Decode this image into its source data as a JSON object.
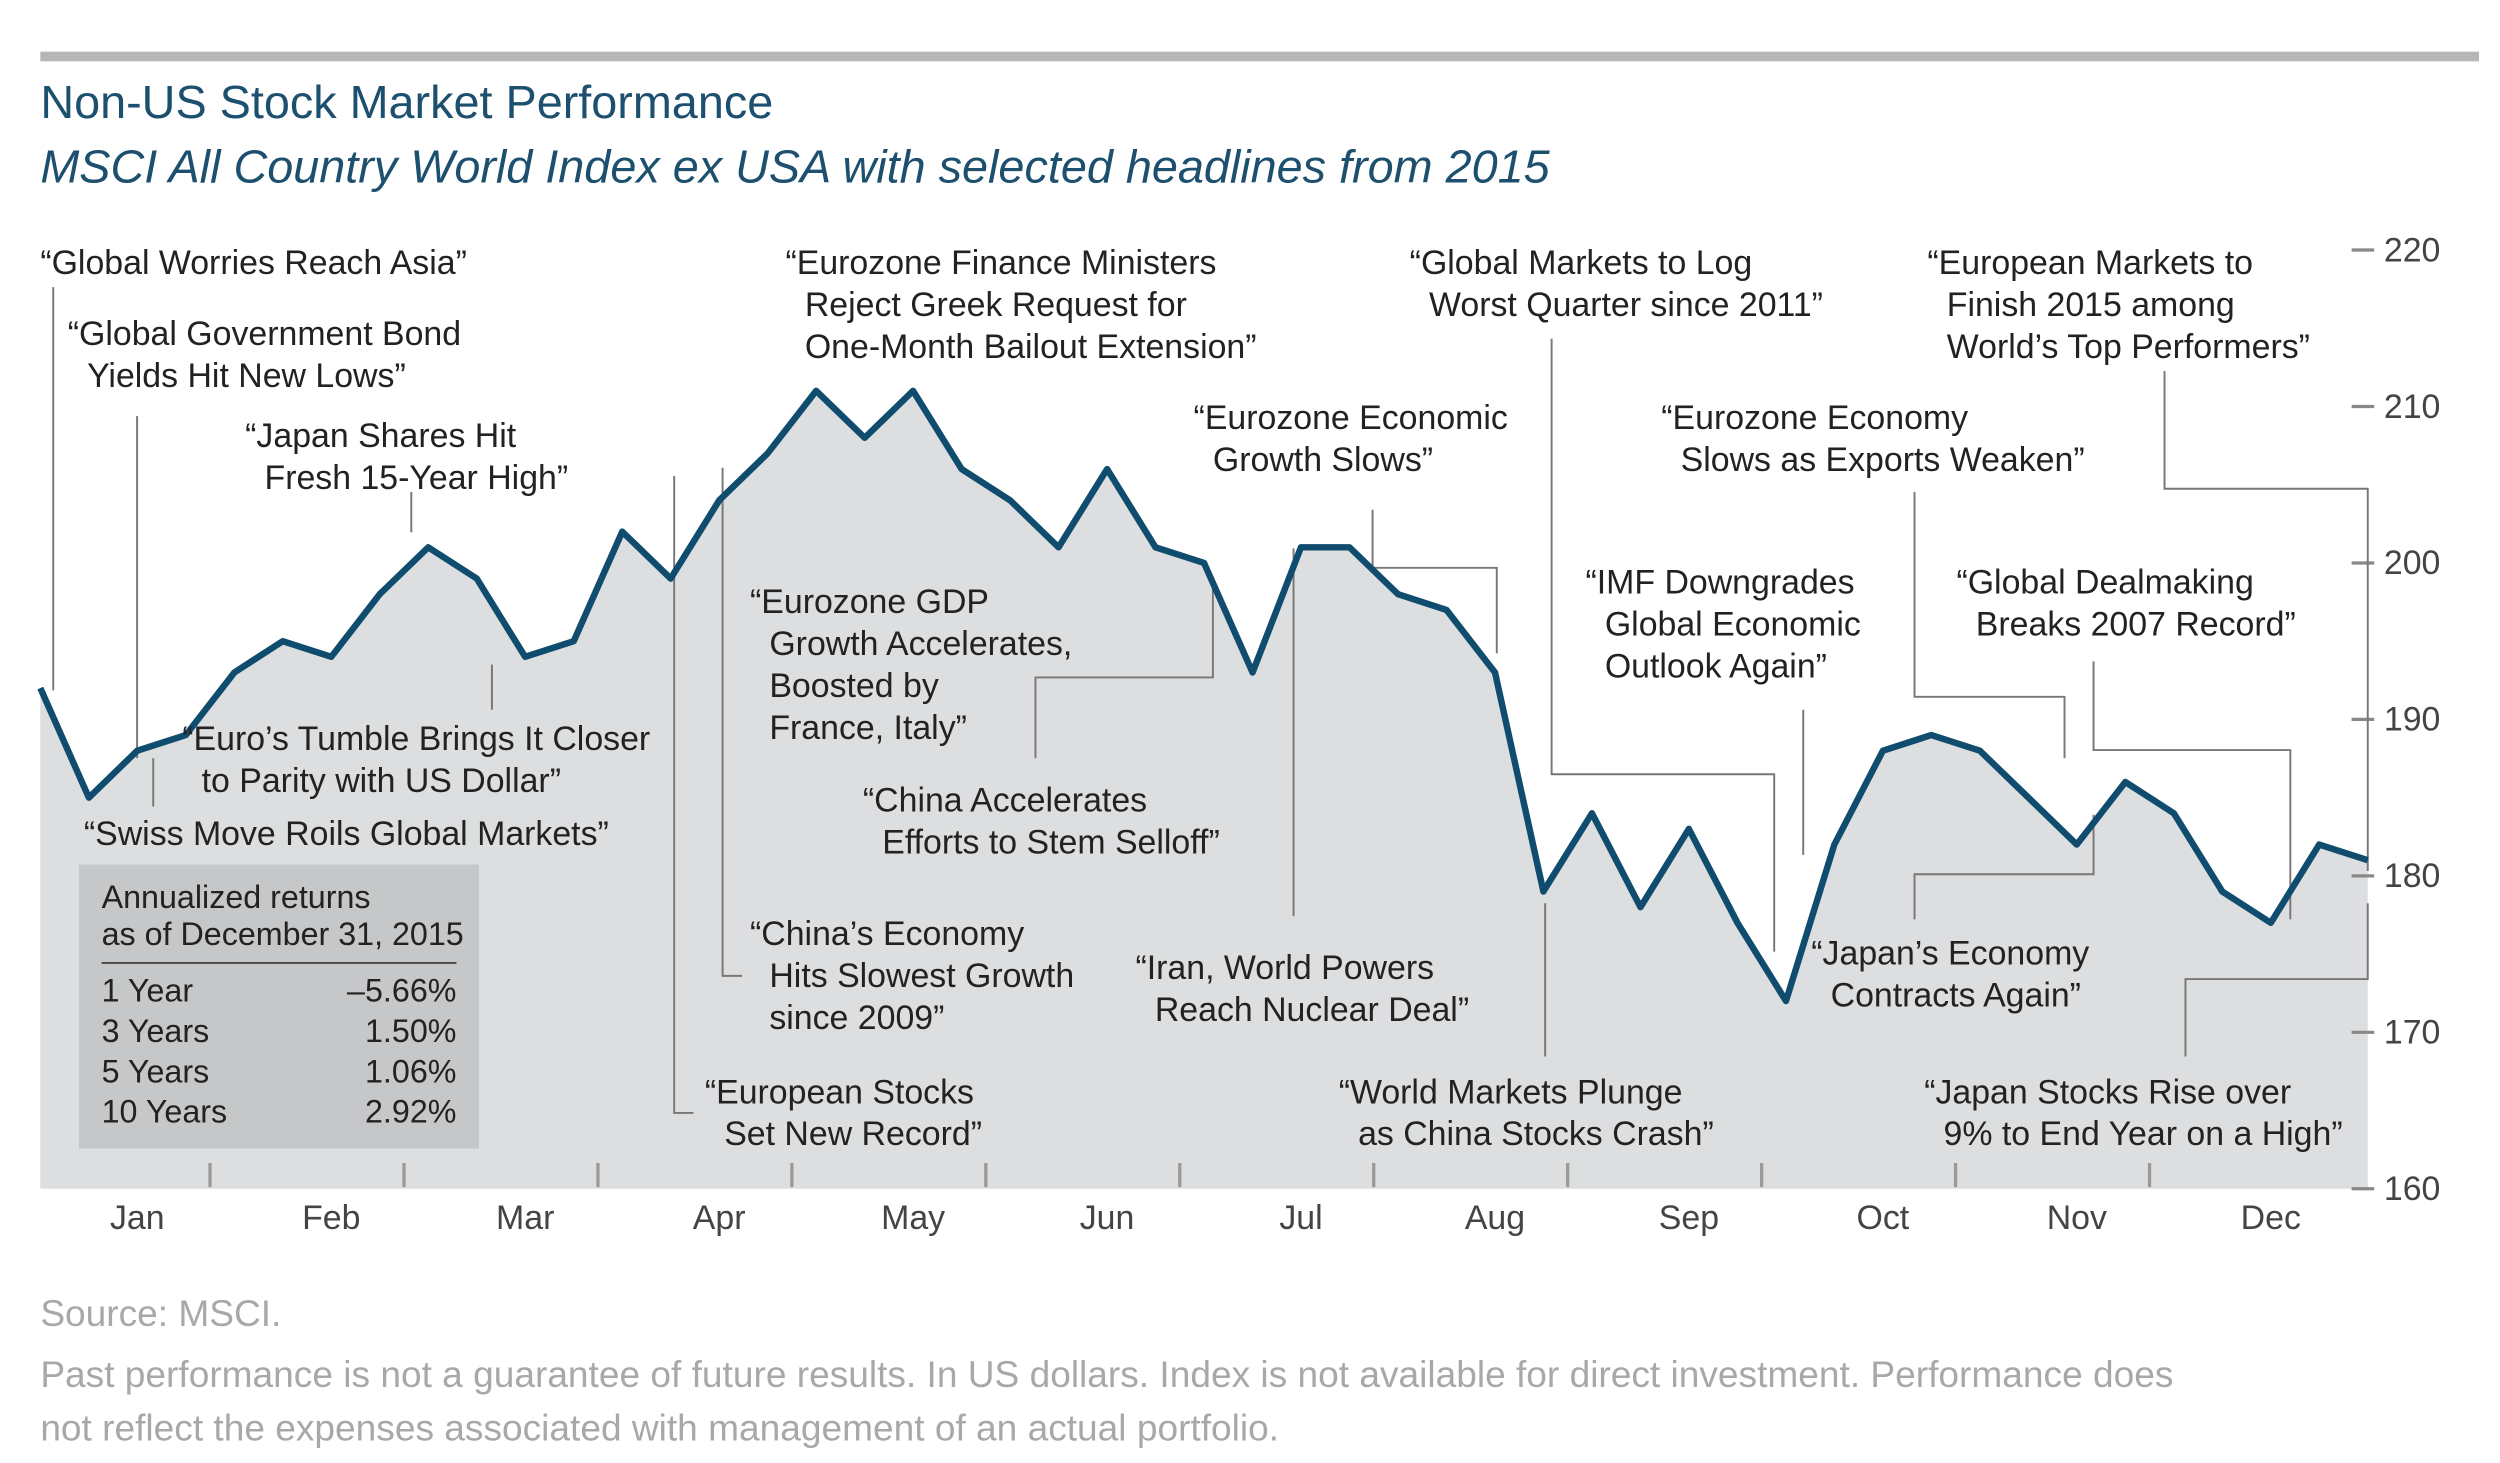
{
  "chart_data": {
    "type": "line",
    "title": "Non-US Stock Market Performance",
    "subtitle": "MSCI All Country World Index ex USA with selected headlines from 2015",
    "categories": [
      "Jan",
      null,
      null,
      null,
      "Feb",
      null,
      null,
      null,
      "Mar",
      null,
      null,
      null,
      "Apr",
      null,
      null,
      null,
      "May",
      null,
      null,
      null,
      "Jun",
      null,
      null,
      null,
      "Jul",
      null,
      null,
      null,
      "Aug",
      null,
      null,
      null,
      "Sep",
      null,
      null,
      null,
      "Oct",
      null,
      null,
      null,
      "Nov",
      null,
      null,
      null,
      "Dec",
      null,
      null,
      null,
      null
    ],
    "values": [
      192,
      185,
      188,
      189,
      193,
      195,
      194,
      198,
      201,
      199,
      194,
      195,
      202,
      199,
      204,
      207,
      211,
      208,
      211,
      206,
      204,
      201,
      206,
      201,
      200,
      193,
      201,
      201,
      198,
      197,
      193,
      179,
      184,
      178,
      183,
      177,
      172,
      182,
      188,
      189,
      188,
      185,
      182,
      186,
      184,
      179,
      177,
      182,
      181
    ],
    "color": "#0f4c6e",
    "ylim": [
      160,
      220
    ],
    "yticks": [
      160,
      170,
      180,
      190,
      200,
      210,
      220
    ],
    "y_axis_side": "right",
    "grid": false,
    "annotations": [
      [
        "“Global Worries Reach Asia”"
      ],
      [
        "“Global Government Bond",
        "Yields Hit New Lows”"
      ],
      [
        "“Japan Shares Hit",
        "Fresh 15-Year High”"
      ],
      [
        "“Euro’s Tumble Brings It Closer",
        "to Parity with US Dollar”"
      ],
      [
        "“Swiss Move Roils Global Markets”"
      ],
      [
        "“Eurozone Finance Ministers",
        "Reject Greek Request for",
        "One-Month Bailout Extension”"
      ],
      [
        "“Eurozone GDP",
        "Growth Accelerates,",
        "Boosted by",
        "France, Italy”"
      ],
      [
        "“China Accelerates",
        "Efforts to Stem Selloff”"
      ],
      [
        "“China’s Economy",
        "Hits Slowest Growth",
        "since 2009”"
      ],
      [
        "“European Stocks",
        "Set New Record”"
      ],
      [
        "“Eurozone Economic",
        "Growth Slows”"
      ],
      [
        "“Iran, World Powers",
        "Reach Nuclear Deal”"
      ],
      [
        "“Global Markets to Log",
        "Worst Quarter since 2011”"
      ],
      [
        "“Eurozone Economy",
        "Slows as Exports Weaken”"
      ],
      [
        "“IMF Downgrades",
        "Global Economic",
        "Outlook Again”"
      ],
      [
        "“European Markets to",
        "Finish 2015 among",
        "World’s Top Performers”"
      ],
      [
        "“Global Dealmaking",
        "Breaks 2007 Record”"
      ],
      [
        "“Japan’s Economy",
        "Contracts Again”"
      ],
      [
        "“World Markets Plunge",
        "as China Stocks Crash”"
      ],
      [
        "“Japan Stocks Rise over",
        "9% to End Year on a High”"
      ]
    ],
    "returns_table": {
      "title": [
        "Annualized returns",
        "as of December 31, 2015"
      ],
      "rows": [
        [
          "1 Year",
          "–5.66%"
        ],
        [
          "3 Years",
          "1.50%"
        ],
        [
          "5 Years",
          "1.06%"
        ],
        [
          "10 Years",
          "2.92%"
        ]
      ]
    },
    "source": "Source: MSCI.",
    "footnote": [
      "Past performance is not a guarantee of future results. In US dollars. Index is not available for direct investment. Performance does",
      "not reflect the expenses associated with management of an actual portfolio."
    ]
  }
}
